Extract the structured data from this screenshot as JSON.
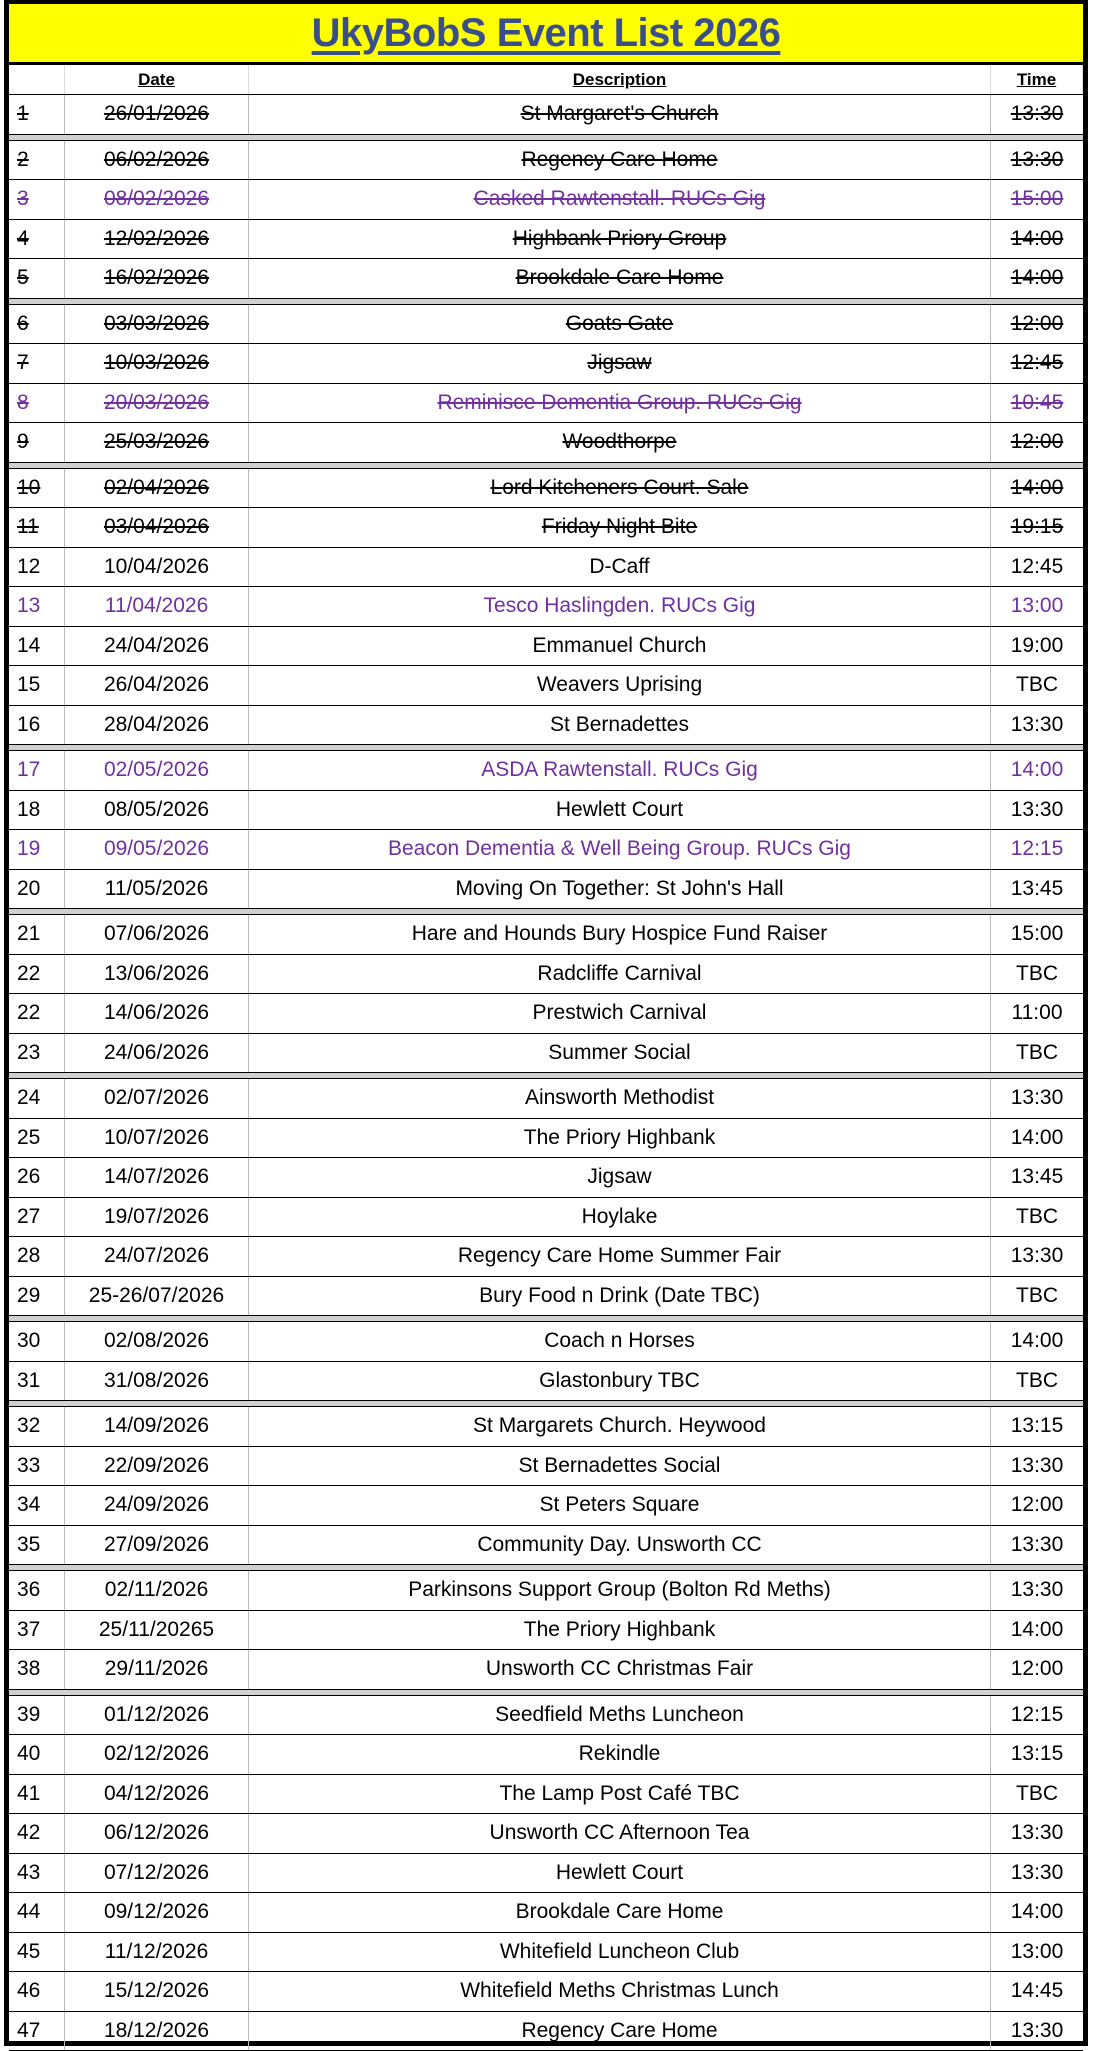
{
  "title": "UkyBobS Event List 2026",
  "headers": {
    "number": "",
    "date": "Date",
    "description": "Description",
    "time": "Time"
  },
  "colors": {
    "title_bg": "#ffff00",
    "title_text": "#3a4f8a",
    "gig_text": "#7030a0"
  },
  "groups": [
    [
      {
        "n": "1",
        "date": "26/01/2026",
        "desc": "St Margaret's Church",
        "time": "13:30",
        "struck": true
      }
    ],
    [
      {
        "n": "2",
        "date": "06/02/2026",
        "desc": "Regency Care Home",
        "time": "13:30",
        "struck": true
      },
      {
        "n": "3",
        "date": "08/02/2026",
        "desc": "Casked Rawtenstall. RUCs Gig",
        "time": "15:00",
        "struck": true,
        "purple": true
      },
      {
        "n": "4",
        "date": "12/02/2026",
        "desc": "Highbank Priory Group",
        "time": "14:00",
        "struck": true
      },
      {
        "n": "5",
        "date": "16/02/2026",
        "desc": "Brookdale Care Home",
        "time": "14:00",
        "struck": true
      }
    ],
    [
      {
        "n": "6",
        "date": "03/03/2026",
        "desc": "Goats Gate",
        "time": "12:00",
        "struck": true
      },
      {
        "n": "7",
        "date": "10/03/2026",
        "desc": "Jigsaw",
        "time": "12:45",
        "struck": true
      },
      {
        "n": "8",
        "date": "20/03/2026",
        "desc": "Reminisce Dementia Group. RUCs Gig",
        "time": "10:45",
        "struck": true,
        "purple": true
      },
      {
        "n": "9",
        "date": "25/03/2026",
        "desc": "Woodthorpe",
        "time": "12:00",
        "struck": true
      }
    ],
    [
      {
        "n": "10",
        "date": "02/04/2026",
        "desc": "Lord Kitcheners Court. Sale",
        "time": "14:00",
        "struck": true
      },
      {
        "n": "11",
        "date": "03/04/2026",
        "desc": "Friday Night Bite",
        "time": "19:15",
        "struck": true
      },
      {
        "n": "12",
        "date": "10/04/2026",
        "desc": "D-Caff",
        "time": "12:45"
      },
      {
        "n": "13",
        "date": "11/04/2026",
        "desc": "Tesco Haslingden. RUCs Gig",
        "time": "13:00",
        "purple": true
      },
      {
        "n": "14",
        "date": "24/04/2026",
        "desc": "Emmanuel Church",
        "time": "19:00"
      },
      {
        "n": "15",
        "date": "26/04/2026",
        "desc": "Weavers Uprising",
        "time": "TBC"
      },
      {
        "n": "16",
        "date": "28/04/2026",
        "desc": "St Bernadettes",
        "time": "13:30"
      }
    ],
    [
      {
        "n": "17",
        "date": "02/05/2026",
        "desc": "ASDA Rawtenstall. RUCs Gig",
        "time": "14:00",
        "purple": true
      },
      {
        "n": "18",
        "date": "08/05/2026",
        "desc": "Hewlett Court",
        "time": "13:30"
      },
      {
        "n": "19",
        "date": "09/05/2026",
        "desc": "Beacon Dementia & Well Being Group. RUCs Gig",
        "time": "12:15",
        "purple": true
      },
      {
        "n": "20",
        "date": "11/05/2026",
        "desc": "Moving On Together: St John's Hall",
        "time": "13:45"
      }
    ],
    [
      {
        "n": "21",
        "date": "07/06/2026",
        "desc": "Hare and Hounds Bury Hospice Fund Raiser",
        "time": "15:00"
      },
      {
        "n": "22",
        "date": "13/06/2026",
        "desc": "Radcliffe Carnival",
        "time": "TBC"
      },
      {
        "n": "22",
        "date": "14/06/2026",
        "desc": "Prestwich Carnival",
        "time": "11:00"
      },
      {
        "n": "23",
        "date": "24/06/2026",
        "desc": "Summer Social",
        "time": "TBC"
      }
    ],
    [
      {
        "n": "24",
        "date": "02/07/2026",
        "desc": "Ainsworth Methodist",
        "time": "13:30"
      },
      {
        "n": "25",
        "date": "10/07/2026",
        "desc": "The Priory Highbank",
        "time": "14:00"
      },
      {
        "n": "26",
        "date": "14/07/2026",
        "desc": "Jigsaw",
        "time": "13:45"
      },
      {
        "n": "27",
        "date": "19/07/2026",
        "desc": "Hoylake",
        "time": "TBC"
      },
      {
        "n": "28",
        "date": "24/07/2026",
        "desc": "Regency Care Home Summer Fair",
        "time": "13:30"
      },
      {
        "n": "29",
        "date": "25-26/07/2026",
        "desc": "Bury Food n Drink (Date TBC)",
        "time": "TBC"
      }
    ],
    [
      {
        "n": "30",
        "date": "02/08/2026",
        "desc": "Coach n Horses",
        "time": "14:00"
      },
      {
        "n": "31",
        "date": "31/08/2026",
        "desc": "Glastonbury TBC",
        "time": "TBC"
      }
    ],
    [
      {
        "n": "32",
        "date": "14/09/2026",
        "desc": "St Margarets Church. Heywood",
        "time": "13:15"
      },
      {
        "n": "33",
        "date": "22/09/2026",
        "desc": "St Bernadettes Social",
        "time": "13:30"
      },
      {
        "n": "34",
        "date": "24/09/2026",
        "desc": "St Peters Square",
        "time": "12:00"
      },
      {
        "n": "35",
        "date": "27/09/2026",
        "desc": "Community Day. Unsworth CC",
        "time": "13:30"
      }
    ],
    [
      {
        "n": "36",
        "date": "02/11/2026",
        "desc": "Parkinsons Support Group (Bolton Rd Meths)",
        "time": "13:30"
      },
      {
        "n": "37",
        "date": "25/11/20265",
        "desc": "The Priory Highbank",
        "time": "14:00"
      },
      {
        "n": "38",
        "date": "29/11/2026",
        "desc": "Unsworth CC Christmas Fair",
        "time": "12:00"
      }
    ],
    [
      {
        "n": "39",
        "date": "01/12/2026",
        "desc": "Seedfield Meths Luncheon",
        "time": "12:15"
      },
      {
        "n": "40",
        "date": "02/12/2026",
        "desc": "Rekindle",
        "time": "13:15"
      },
      {
        "n": "41",
        "date": "04/12/2026",
        "desc": "The Lamp Post Café TBC",
        "time": "TBC"
      },
      {
        "n": "42",
        "date": "06/12/2026",
        "desc": "Unsworth CC Afternoon Tea",
        "time": "13:30"
      },
      {
        "n": "43",
        "date": "07/12/2026",
        "desc": "Hewlett Court",
        "time": "13:30"
      },
      {
        "n": "44",
        "date": "09/12/2026",
        "desc": "Brookdale Care Home",
        "time": "14:00"
      },
      {
        "n": "45",
        "date": "11/12/2026",
        "desc": "Whitefield Luncheon Club",
        "time": "13:00"
      },
      {
        "n": "46",
        "date": "15/12/2026",
        "desc": "Whitefield Meths Christmas Lunch",
        "time": "14:45"
      },
      {
        "n": "47",
        "date": "18/12/2026",
        "desc": "Regency Care Home",
        "time": "13:30"
      }
    ]
  ]
}
